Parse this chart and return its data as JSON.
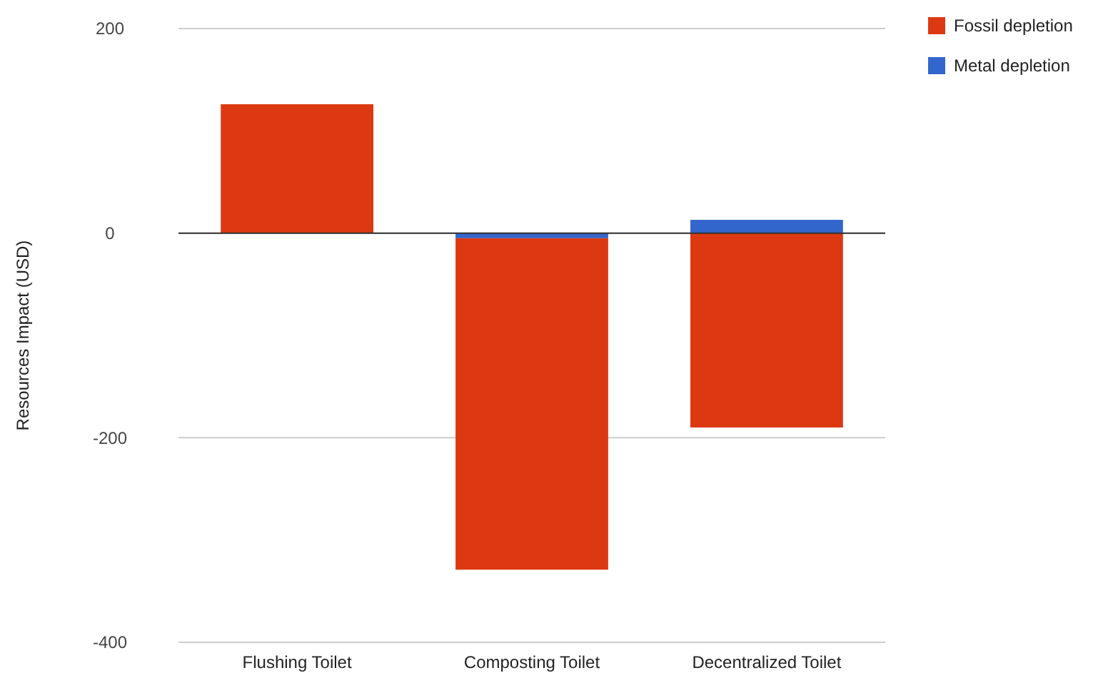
{
  "chart_data": {
    "type": "bar",
    "stacked": true,
    "ylabel": "Resources Impact (USD)",
    "categories": [
      "Flushing Toilet",
      "Composting Toilet",
      "Decentralized Toilet"
    ],
    "series": [
      {
        "name": "Metal depletion",
        "color": "#3366cc",
        "values": [
          0,
          -5,
          13
        ]
      },
      {
        "name": "Fossil depletion",
        "color": "#dc3912",
        "values": [
          126,
          -324,
          -190
        ]
      }
    ],
    "ylim": [
      -400,
      200
    ],
    "yticks": [
      -400,
      -200,
      0,
      200
    ],
    "grid": "y",
    "legend": "top right"
  }
}
